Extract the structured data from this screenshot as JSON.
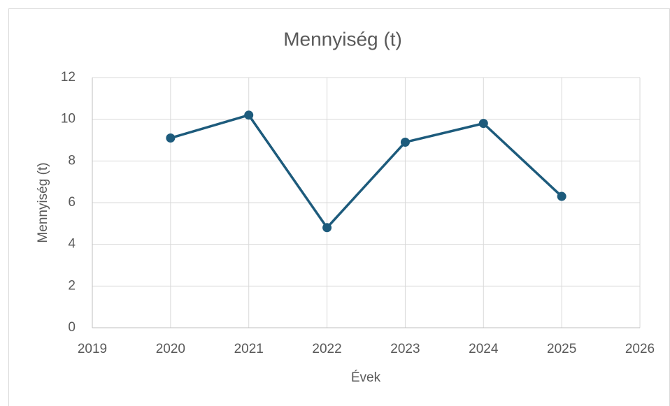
{
  "chart_data": {
    "type": "line",
    "title": "Mennyiség (t)",
    "x_label": "Évek",
    "y_label": "Mennyiség (t)",
    "x": [
      2020,
      2021,
      2022,
      2023,
      2024,
      2025
    ],
    "series": [
      {
        "name": "Mennyiség (t)",
        "color": "#1d5b7c",
        "values": [
          9.1,
          10.2,
          4.8,
          8.9,
          9.8,
          6.3
        ]
      }
    ],
    "xlim": [
      2019,
      2026
    ],
    "xticks": [
      2019,
      2020,
      2021,
      2022,
      2023,
      2024,
      2025,
      2026
    ],
    "ylim": [
      0,
      12
    ],
    "yticks": [
      0,
      2,
      4,
      6,
      8,
      10,
      12
    ],
    "grid": true
  }
}
